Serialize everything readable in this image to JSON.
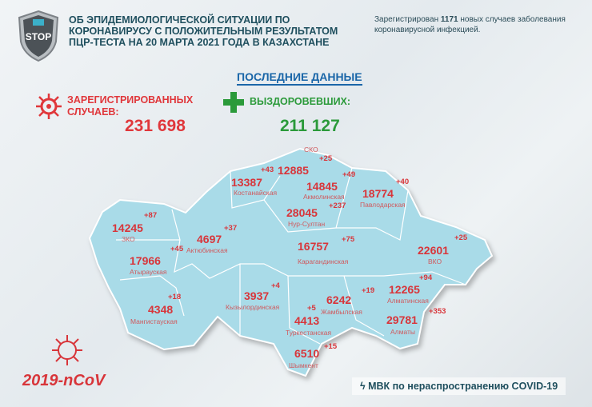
{
  "header": {
    "logo_text": "STOP",
    "title_lines": [
      "ОБ ЭПИДЕМИОЛОГИЧЕСКОЙ СИТУАЦИИ ПО",
      "КОРОНАВИРУСУ С ПОЛОЖИТЕЛЬНЫМ РЕЗУЛЬТАТОМ",
      "ПЦР-ТЕСТА НА 20 МАРТА 2021 ГОДА В КАЗАХСТАНЕ"
    ],
    "note_prefix": "Зарегистрирован ",
    "note_count": "1171",
    "note_suffix": " новых случаев заболевания коронавирусной инфекцией."
  },
  "latest_label": "ПОСЛЕДНИЕ ДАННЫЕ",
  "registered": {
    "label_lines": [
      "ЗАРЕГИСТРИРОВАННЫХ",
      "СЛУЧАЕВ:"
    ],
    "value": "231 698",
    "icon": "virus-icon"
  },
  "recovered": {
    "label": "ВЫЗДОРОВЕВШИХ:",
    "value": "211 127",
    "icon": "plus-icon"
  },
  "colors": {
    "accent_red": "#d8353a",
    "accent_green": "#2b9a3a",
    "map_fill": "#a9dbe8",
    "title_color": "#1f4f5e"
  },
  "regions": [
    {
      "name": "СКО",
      "total": "12885",
      "delta": "+25"
    },
    {
      "name": "Костанайская",
      "total": "13387",
      "delta": "+43"
    },
    {
      "name": "Акмолинская",
      "total": "14845",
      "delta": "+49"
    },
    {
      "name": "Павлодарская",
      "total": "18774",
      "delta": "+40"
    },
    {
      "name": "Нур-Султан",
      "total": "28045",
      "delta": "+237"
    },
    {
      "name": "ЗКО",
      "total": "14245",
      "delta": "+87"
    },
    {
      "name": "Актюбинская",
      "total": "4697",
      "delta": "+37"
    },
    {
      "name": "Атырауская",
      "total": "17966",
      "delta": "+45"
    },
    {
      "name": "Карагандинская",
      "total": "16757",
      "delta": "+75"
    },
    {
      "name": "ВКО",
      "total": "22601",
      "delta": "+25"
    },
    {
      "name": "Мангистауская",
      "total": "4348",
      "delta": "+18"
    },
    {
      "name": "Кызылординская",
      "total": "3937",
      "delta": "+4"
    },
    {
      "name": "Жамбылская",
      "total": "6242",
      "delta": "+19"
    },
    {
      "name": "Туркестанская",
      "total": "4413",
      "delta": "+5"
    },
    {
      "name": "Шымкент",
      "total": "6510",
      "delta": "+15"
    },
    {
      "name": "Алматинская",
      "total": "12265",
      "delta": "+94"
    },
    {
      "name": "Алматы",
      "total": "29781",
      "delta": "+353"
    }
  ],
  "ncov_label": "2019-nCoV",
  "footer": "МВК по нераспространению COVID-19"
}
